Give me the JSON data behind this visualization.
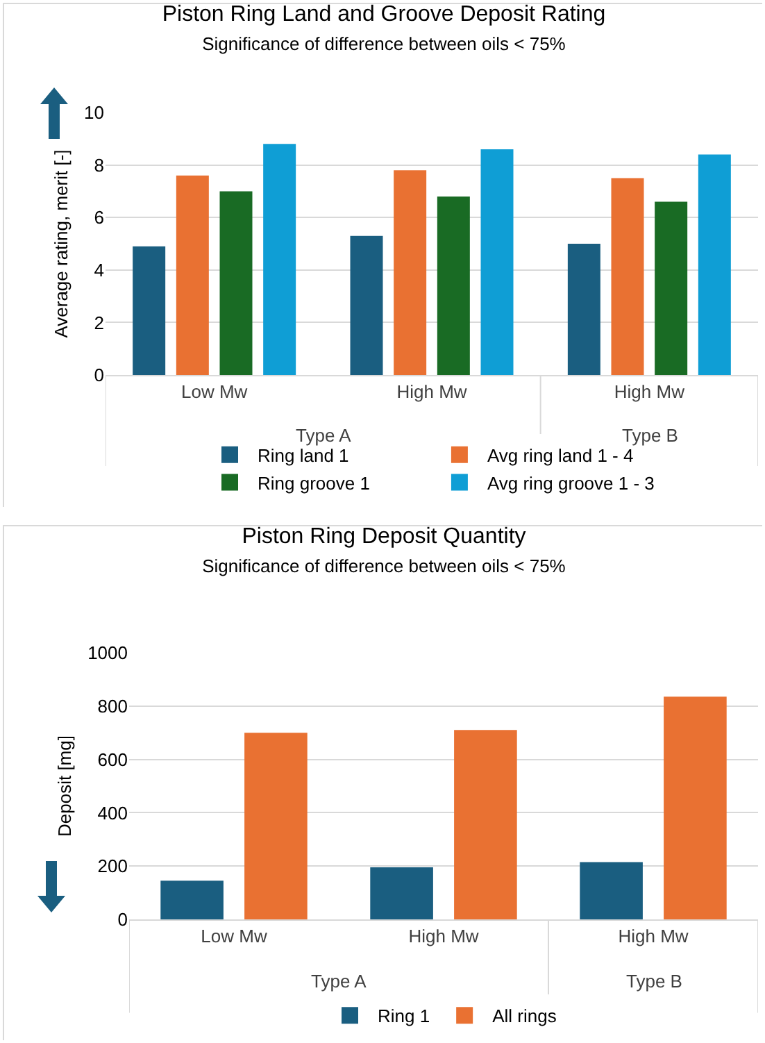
{
  "chart_data": [
    {
      "type": "bar",
      "title": "Piston Ring Land and Groove Deposit Rating",
      "subtitle": "Significance of difference between oils < 75%",
      "ylabel": "Average rating, merit [-]",
      "categories": [
        "Low Mw",
        "High Mw",
        "High Mw"
      ],
      "annotations": [
        "Type A",
        "Type B"
      ],
      "series": [
        {
          "name": "Ring land 1",
          "color": "#1a5e80",
          "values": [
            4.9,
            5.3,
            5.0
          ]
        },
        {
          "name": "Avg ring land 1 - 4",
          "color": "#e97132",
          "values": [
            7.6,
            7.8,
            7.5
          ]
        },
        {
          "name": "Ring groove 1",
          "color": "#196b24",
          "values": [
            7.0,
            6.8,
            6.6
          ]
        },
        {
          "name": "Avg ring groove 1 - 3",
          "color": "#0f9ed5",
          "values": [
            8.8,
            8.6,
            8.4
          ]
        }
      ],
      "ylim": [
        0,
        10
      ],
      "yticks": [
        0,
        2,
        4,
        6,
        8,
        10
      ],
      "grid": "y",
      "legend": "bottom"
    },
    {
      "type": "bar",
      "title": "Piston Ring Deposit Quantity",
      "subtitle": "Significance of difference between oils < 75%",
      "ylabel": "Deposit [mg]",
      "categories": [
        "Low Mw",
        "High Mw",
        "High Mw"
      ],
      "annotations": [
        "Type A",
        "Type B"
      ],
      "series": [
        {
          "name": "Ring 1",
          "color": "#1a5e80",
          "values": [
            145,
            195,
            215
          ]
        },
        {
          "name": "All rings",
          "color": "#e97132",
          "values": [
            700,
            710,
            835
          ]
        }
      ],
      "ylim": [
        0,
        1000
      ],
      "yticks": [
        0,
        200,
        400,
        600,
        800,
        1000
      ],
      "grid": "y",
      "legend": "bottom"
    }
  ]
}
